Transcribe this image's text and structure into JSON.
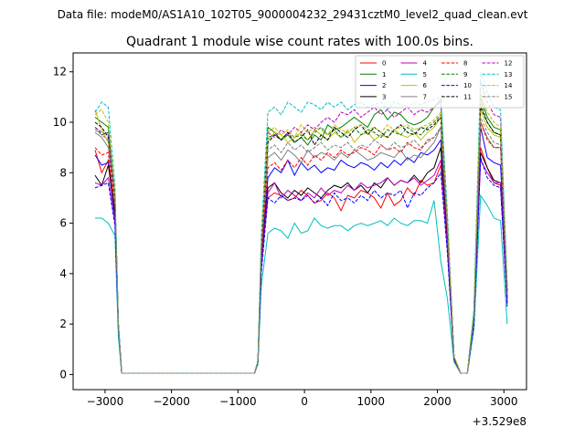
{
  "figure": {
    "suptitle": "Data file: modeM0/AS1A10_102T05_9000004232_29431cztM0_level2_quad_clean.evt",
    "title": "Quadrant 1 module wise count rates with 100.0s bins.",
    "x_offset_label": "+3.529e8"
  },
  "chart_data": {
    "type": "line",
    "title": "Quadrant 1 module wise count rates with 100.0s bins.",
    "xlabel": "",
    "ylabel": "",
    "x_offset": 352900000,
    "xlim": [
      -3480,
      3340
    ],
    "ylim": [
      -0.6,
      12.75
    ],
    "xticks": [
      -3000,
      -2000,
      -1000,
      0,
      1000,
      2000,
      3000
    ],
    "xtick_labels": [
      "−3000",
      "−2000",
      "−1000",
      "0",
      "1000",
      "2000",
      "3000"
    ],
    "yticks": [
      0,
      2,
      4,
      6,
      8,
      10,
      12
    ],
    "ytick_labels": [
      "0",
      "2",
      "4",
      "6",
      "8",
      "10",
      "12"
    ],
    "grid": false,
    "legend_position": "top-right",
    "legend_columns": 4,
    "x": [
      -3150,
      -3050,
      -2950,
      -2850,
      -2800,
      -2750,
      -2650,
      -2550,
      -2450,
      -2350,
      -2250,
      -2150,
      -2050,
      -1950,
      -1850,
      -1750,
      -1650,
      -1550,
      -1450,
      -1350,
      -1250,
      -1150,
      -1050,
      -950,
      -850,
      -750,
      -700,
      -650,
      -550,
      -450,
      -350,
      -250,
      -150,
      -50,
      50,
      150,
      250,
      350,
      450,
      550,
      650,
      750,
      850,
      950,
      1050,
      1150,
      1250,
      1350,
      1450,
      1550,
      1650,
      1750,
      1850,
      1950,
      2050,
      2150,
      2250,
      2350,
      2450,
      2550,
      2650,
      2750,
      2850,
      2950,
      3050
    ],
    "series": [
      {
        "name": "0",
        "color": "#ff0000",
        "dash": "solid",
        "values": [
          8.9,
          8.0,
          8.5,
          6.5,
          2.0,
          0.05,
          0.05,
          0.05,
          0.05,
          0.05,
          0.05,
          0.05,
          0.05,
          0.05,
          0.05,
          0.05,
          0.05,
          0.05,
          0.05,
          0.05,
          0.05,
          0.05,
          0.05,
          0.05,
          0.05,
          0.05,
          0.5,
          4.5,
          7.0,
          7.2,
          7.1,
          6.9,
          7.0,
          7.3,
          7.1,
          6.8,
          6.9,
          7.2,
          7.0,
          6.5,
          7.1,
          7.0,
          7.3,
          7.2,
          7.0,
          6.6,
          7.2,
          6.7,
          6.9,
          7.4,
          7.1,
          7.7,
          7.5,
          7.6,
          8.3,
          5.0,
          0.6,
          0.05,
          0.05,
          2.0,
          9.0,
          8.2,
          7.6,
          7.5,
          3.0
        ]
      },
      {
        "name": "1",
        "color": "#008000",
        "dash": "solid",
        "values": [
          10.2,
          10.0,
          9.8,
          7.0,
          2.0,
          0.05,
          0.05,
          0.05,
          0.05,
          0.05,
          0.05,
          0.05,
          0.05,
          0.05,
          0.05,
          0.05,
          0.05,
          0.05,
          0.05,
          0.05,
          0.05,
          0.05,
          0.05,
          0.05,
          0.05,
          0.05,
          0.5,
          5.0,
          9.8,
          9.6,
          9.3,
          9.5,
          9.2,
          9.4,
          9.1,
          9.5,
          9.3,
          9.9,
          9.7,
          9.8,
          10.0,
          10.2,
          10.0,
          9.8,
          10.3,
          10.5,
          10.1,
          10.4,
          10.3,
          10.0,
          9.9,
          10.0,
          10.2,
          10.6,
          10.9,
          6.0,
          0.7,
          0.05,
          0.05,
          2.5,
          11.0,
          10.2,
          9.8,
          9.7,
          3.5
        ]
      },
      {
        "name": "2",
        "color": "#0000ff",
        "dash": "solid",
        "values": [
          8.7,
          8.3,
          8.4,
          6.2,
          1.8,
          0.05,
          0.05,
          0.05,
          0.05,
          0.05,
          0.05,
          0.05,
          0.05,
          0.05,
          0.05,
          0.05,
          0.05,
          0.05,
          0.05,
          0.05,
          0.05,
          0.05,
          0.05,
          0.05,
          0.05,
          0.05,
          0.5,
          4.6,
          7.8,
          8.2,
          8.0,
          8.5,
          7.9,
          8.4,
          8.1,
          8.3,
          8.0,
          8.2,
          8.1,
          8.5,
          8.3,
          8.2,
          8.4,
          8.3,
          8.1,
          8.4,
          8.2,
          8.5,
          8.3,
          8.6,
          8.4,
          8.8,
          8.7,
          8.9,
          9.3,
          5.5,
          0.6,
          0.05,
          0.05,
          2.2,
          9.8,
          8.6,
          8.4,
          8.3,
          3.0
        ]
      },
      {
        "name": "3",
        "color": "#000000",
        "dash": "solid",
        "values": [
          7.9,
          7.5,
          8.3,
          6.4,
          1.8,
          0.05,
          0.05,
          0.05,
          0.05,
          0.05,
          0.05,
          0.05,
          0.05,
          0.05,
          0.05,
          0.05,
          0.05,
          0.05,
          0.05,
          0.05,
          0.05,
          0.05,
          0.05,
          0.05,
          0.05,
          0.05,
          0.5,
          4.3,
          7.4,
          7.6,
          7.2,
          7.0,
          7.3,
          7.1,
          7.4,
          7.2,
          7.0,
          7.3,
          7.5,
          7.4,
          7.6,
          7.3,
          7.5,
          7.2,
          7.6,
          7.4,
          7.8,
          7.5,
          7.7,
          7.6,
          7.9,
          7.6,
          8.0,
          8.2,
          9.0,
          5.2,
          0.6,
          0.05,
          0.05,
          2.1,
          8.8,
          8.2,
          7.7,
          7.6,
          2.8
        ]
      },
      {
        "name": "4",
        "color": "#bf00bf",
        "dash": "solid",
        "values": [
          7.6,
          7.5,
          7.8,
          6.0,
          1.8,
          0.05,
          0.05,
          0.05,
          0.05,
          0.05,
          0.05,
          0.05,
          0.05,
          0.05,
          0.05,
          0.05,
          0.05,
          0.05,
          0.05,
          0.05,
          0.05,
          0.05,
          0.05,
          0.05,
          0.05,
          0.05,
          0.5,
          4.2,
          7.2,
          7.6,
          7.0,
          7.3,
          7.1,
          6.9,
          7.2,
          7.0,
          7.4,
          7.1,
          7.3,
          7.2,
          7.5,
          7.3,
          7.6,
          7.4,
          7.5,
          7.6,
          7.8,
          7.5,
          7.7,
          7.6,
          7.8,
          7.5,
          7.7,
          7.9,
          8.5,
          5.0,
          0.6,
          0.05,
          0.05,
          2.0,
          8.5,
          8.0,
          7.6,
          7.6,
          2.8
        ]
      },
      {
        "name": "5",
        "color": "#00bfbf",
        "dash": "solid",
        "values": [
          6.2,
          6.2,
          6.0,
          5.5,
          1.5,
          0.05,
          0.05,
          0.05,
          0.05,
          0.05,
          0.05,
          0.05,
          0.05,
          0.05,
          0.05,
          0.05,
          0.05,
          0.05,
          0.05,
          0.05,
          0.05,
          0.05,
          0.05,
          0.05,
          0.05,
          0.05,
          0.4,
          3.5,
          5.6,
          5.8,
          5.7,
          5.4,
          6.0,
          5.6,
          5.7,
          6.2,
          5.9,
          5.8,
          5.9,
          5.9,
          5.7,
          5.9,
          6.0,
          5.9,
          6.0,
          6.1,
          5.9,
          6.2,
          6.0,
          5.9,
          6.1,
          6.1,
          6.0,
          6.9,
          4.5,
          3.0,
          0.5,
          0.05,
          0.05,
          1.8,
          7.1,
          6.7,
          6.2,
          6.1,
          2.0
        ]
      },
      {
        "name": "6",
        "color": "#bfbf00",
        "dash": "solid",
        "values": [
          10.5,
          9.7,
          9.2,
          7.0,
          2.0,
          0.05,
          0.05,
          0.05,
          0.05,
          0.05,
          0.05,
          0.05,
          0.05,
          0.05,
          0.05,
          0.05,
          0.05,
          0.05,
          0.05,
          0.05,
          0.05,
          0.05,
          0.05,
          0.05,
          0.05,
          0.05,
          0.5,
          5.0,
          9.3,
          9.6,
          9.5,
          9.2,
          9.4,
          9.6,
          9.3,
          9.7,
          9.5,
          9.3,
          9.6,
          9.4,
          9.7,
          9.2,
          9.5,
          9.6,
          9.3,
          9.5,
          9.4,
          9.7,
          9.5,
          9.4,
          9.6,
          9.3,
          9.6,
          9.8,
          10.2,
          6.0,
          0.7,
          0.05,
          0.05,
          2.4,
          10.5,
          9.8,
          9.5,
          9.4,
          3.3
        ]
      },
      {
        "name": "7",
        "color": "#808080",
        "dash": "solid",
        "values": [
          9.6,
          9.4,
          9.0,
          7.0,
          2.0,
          0.05,
          0.05,
          0.05,
          0.05,
          0.05,
          0.05,
          0.05,
          0.05,
          0.05,
          0.05,
          0.05,
          0.05,
          0.05,
          0.05,
          0.05,
          0.05,
          0.05,
          0.05,
          0.05,
          0.05,
          0.05,
          0.5,
          4.8,
          8.6,
          8.8,
          8.5,
          8.9,
          8.7,
          8.4,
          8.9,
          8.6,
          8.8,
          8.7,
          8.5,
          8.8,
          8.6,
          8.9,
          8.7,
          8.5,
          8.6,
          8.8,
          8.7,
          8.6,
          8.9,
          8.5,
          8.7,
          8.6,
          8.9,
          9.2,
          9.8,
          5.8,
          0.7,
          0.05,
          0.05,
          2.3,
          10.0,
          9.4,
          9.0,
          9.0,
          3.2
        ]
      },
      {
        "name": "8",
        "color": "#ff0000",
        "dash": "dashed",
        "values": [
          9.0,
          8.7,
          8.8,
          6.8,
          2.0,
          0.05,
          0.05,
          0.05,
          0.05,
          0.05,
          0.05,
          0.05,
          0.05,
          0.05,
          0.05,
          0.05,
          0.05,
          0.05,
          0.05,
          0.05,
          0.05,
          0.05,
          0.05,
          0.05,
          0.05,
          0.05,
          0.5,
          4.7,
          8.2,
          8.4,
          8.1,
          8.5,
          8.2,
          8.6,
          8.3,
          8.7,
          8.5,
          8.8,
          8.6,
          8.9,
          8.7,
          8.8,
          9.0,
          8.9,
          8.7,
          9.1,
          8.9,
          9.0,
          8.8,
          9.2,
          9.0,
          8.9,
          9.3,
          9.4,
          9.8,
          5.6,
          0.6,
          0.05,
          0.05,
          2.3,
          10.0,
          9.3,
          9.0,
          9.0,
          3.2
        ]
      },
      {
        "name": "9",
        "color": "#008000",
        "dash": "dashed",
        "values": [
          9.8,
          9.5,
          9.6,
          7.0,
          2.0,
          0.05,
          0.05,
          0.05,
          0.05,
          0.05,
          0.05,
          0.05,
          0.05,
          0.05,
          0.05,
          0.05,
          0.05,
          0.05,
          0.05,
          0.05,
          0.05,
          0.05,
          0.05,
          0.05,
          0.05,
          0.05,
          0.5,
          5.0,
          9.4,
          9.5,
          9.3,
          9.6,
          9.4,
          9.5,
          9.3,
          9.6,
          9.8,
          9.5,
          9.7,
          9.4,
          9.6,
          9.8,
          9.5,
          9.7,
          9.6,
          9.4,
          9.7,
          9.6,
          9.5,
          9.8,
          9.6,
          9.5,
          9.8,
          10.0,
          10.3,
          6.0,
          0.7,
          0.05,
          0.05,
          2.4,
          10.8,
          10.0,
          9.6,
          9.5,
          3.3
        ]
      },
      {
        "name": "10",
        "color": "#0000ff",
        "dash": "dashed",
        "values": [
          7.4,
          7.5,
          7.6,
          5.9,
          1.8,
          0.05,
          0.05,
          0.05,
          0.05,
          0.05,
          0.05,
          0.05,
          0.05,
          0.05,
          0.05,
          0.05,
          0.05,
          0.05,
          0.05,
          0.05,
          0.05,
          0.05,
          0.05,
          0.05,
          0.05,
          0.05,
          0.5,
          4.0,
          7.0,
          6.8,
          7.1,
          6.9,
          7.0,
          6.9,
          7.1,
          6.8,
          7.0,
          6.7,
          7.2,
          6.9,
          7.0,
          6.8,
          7.1,
          6.9,
          7.3,
          7.0,
          7.2,
          7.1,
          7.3,
          6.6,
          7.2,
          7.1,
          7.4,
          7.6,
          8.0,
          4.8,
          0.6,
          0.05,
          0.05,
          2.0,
          8.6,
          7.8,
          7.5,
          7.4,
          2.7
        ]
      },
      {
        "name": "11",
        "color": "#000000",
        "dash": "dashed",
        "values": [
          10.0,
          9.8,
          9.4,
          7.0,
          2.0,
          0.05,
          0.05,
          0.05,
          0.05,
          0.05,
          0.05,
          0.05,
          0.05,
          0.05,
          0.05,
          0.05,
          0.05,
          0.05,
          0.05,
          0.05,
          0.05,
          0.05,
          0.05,
          0.05,
          0.05,
          0.05,
          0.5,
          5.0,
          9.2,
          9.5,
          9.3,
          9.6,
          9.2,
          9.4,
          9.7,
          9.1,
          9.5,
          9.3,
          9.8,
          9.6,
          9.4,
          9.7,
          9.9,
          9.5,
          9.8,
          9.6,
          9.4,
          9.7,
          9.9,
          9.6,
          9.5,
          9.8,
          9.7,
          9.9,
          10.2,
          6.0,
          0.7,
          0.05,
          0.05,
          2.4,
          10.6,
          10.0,
          9.6,
          9.5,
          3.3
        ]
      },
      {
        "name": "12",
        "color": "#bf00bf",
        "dash": "dashed",
        "values": [
          9.8,
          9.6,
          9.5,
          7.0,
          2.0,
          0.05,
          0.05,
          0.05,
          0.05,
          0.05,
          0.05,
          0.05,
          0.05,
          0.05,
          0.05,
          0.05,
          0.05,
          0.05,
          0.05,
          0.05,
          0.05,
          0.05,
          0.05,
          0.05,
          0.05,
          0.05,
          0.5,
          5.0,
          9.6,
          9.4,
          9.7,
          9.5,
          9.8,
          9.6,
          9.9,
          9.7,
          10.0,
          10.2,
          10.0,
          10.4,
          10.3,
          10.5,
          10.2,
          10.4,
          10.6,
          10.3,
          10.5,
          10.2,
          10.4,
          10.6,
          10.3,
          10.5,
          10.4,
          10.6,
          10.8,
          6.2,
          0.7,
          0.05,
          0.05,
          2.5,
          11.6,
          10.8,
          10.3,
          10.2,
          3.4
        ]
      },
      {
        "name": "13",
        "color": "#00bfbf",
        "dash": "dashed",
        "values": [
          10.4,
          10.8,
          10.6,
          7.5,
          2.0,
          0.05,
          0.05,
          0.05,
          0.05,
          0.05,
          0.05,
          0.05,
          0.05,
          0.05,
          0.05,
          0.05,
          0.05,
          0.05,
          0.05,
          0.05,
          0.05,
          0.05,
          0.05,
          0.05,
          0.05,
          0.05,
          0.6,
          5.5,
          10.4,
          10.6,
          10.3,
          10.8,
          10.6,
          10.4,
          10.8,
          10.7,
          10.5,
          10.8,
          10.6,
          10.8,
          10.5,
          10.7,
          10.8,
          10.6,
          10.7,
          10.8,
          10.5,
          10.8,
          10.7,
          10.6,
          10.8,
          10.7,
          10.8,
          10.9,
          11.0,
          6.4,
          0.7,
          0.05,
          0.05,
          2.6,
          12.0,
          11.2,
          10.6,
          10.5,
          3.5
        ]
      },
      {
        "name": "14",
        "color": "#bfbf00",
        "dash": "dashed",
        "values": [
          10.3,
          10.5,
          10.0,
          7.2,
          2.0,
          0.05,
          0.05,
          0.05,
          0.05,
          0.05,
          0.05,
          0.05,
          0.05,
          0.05,
          0.05,
          0.05,
          0.05,
          0.05,
          0.05,
          0.05,
          0.05,
          0.05,
          0.05,
          0.05,
          0.05,
          0.05,
          0.5,
          5.2,
          9.6,
          9.8,
          9.5,
          9.7,
          9.4,
          9.9,
          9.6,
          9.8,
          9.7,
          9.5,
          9.9,
          9.7,
          9.6,
          9.8,
          9.9,
          9.7,
          9.8,
          9.6,
          9.9,
          9.7,
          9.8,
          9.9,
          9.7,
          9.8,
          9.9,
          10.1,
          10.4,
          6.1,
          0.7,
          0.05,
          0.05,
          2.5,
          11.2,
          10.4,
          10.0,
          9.8,
          3.4
        ]
      },
      {
        "name": "15",
        "color": "#808080",
        "dash": "dashed",
        "values": [
          9.7,
          9.5,
          9.3,
          7.0,
          2.0,
          0.05,
          0.05,
          0.05,
          0.05,
          0.05,
          0.05,
          0.05,
          0.05,
          0.05,
          0.05,
          0.05,
          0.05,
          0.05,
          0.05,
          0.05,
          0.05,
          0.05,
          0.05,
          0.05,
          0.05,
          0.05,
          0.5,
          4.9,
          8.9,
          9.1,
          8.8,
          9.2,
          8.9,
          9.1,
          8.8,
          9.0,
          9.2,
          8.9,
          9.1,
          9.0,
          9.2,
          8.9,
          9.1,
          9.0,
          9.3,
          9.1,
          8.9,
          9.2,
          9.0,
          9.1,
          9.3,
          9.0,
          9.2,
          9.4,
          9.8,
          5.8,
          0.7,
          0.05,
          0.05,
          2.3,
          10.2,
          9.6,
          9.2,
          9.1,
          3.2
        ]
      }
    ]
  }
}
